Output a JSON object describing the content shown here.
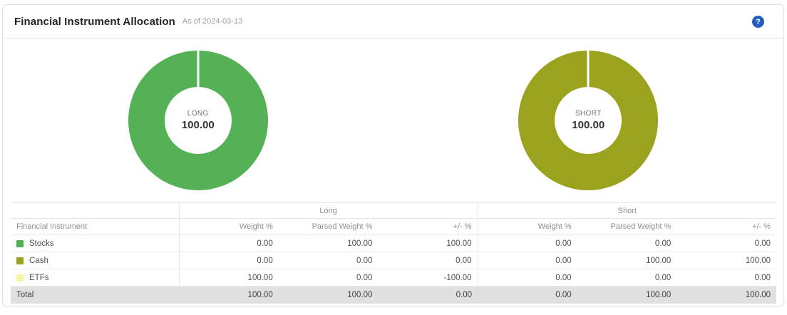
{
  "header": {
    "title": "Financial Instrument Allocation",
    "as_of": "As of 2024-03-13",
    "help_icon": "?"
  },
  "charts": [
    {
      "side": "long",
      "center_label": "LONG",
      "center_value": "100.00",
      "color": "#55b156"
    },
    {
      "side": "short",
      "center_label": "SHORT",
      "center_value": "100.00",
      "color": "#9aa21e"
    }
  ],
  "chart_data": [
    {
      "type": "pie",
      "donut": true,
      "center_label": "LONG",
      "center_value": 100.0,
      "slices": [
        {
          "label": "Stocks",
          "value": 100.0,
          "color": "#55b156"
        }
      ],
      "legend_position": "none"
    },
    {
      "type": "pie",
      "donut": true,
      "center_label": "SHORT",
      "center_value": 100.0,
      "slices": [
        {
          "label": "Cash",
          "value": 100.0,
          "color": "#9aa21e"
        }
      ],
      "legend_position": "none"
    }
  ],
  "table": {
    "group_headers": {
      "long": "Long",
      "short": "Short"
    },
    "col_headers": {
      "instrument": "Financial Instrument",
      "weight": "Weight %",
      "parsed_weight": "Parsed Weight %",
      "plus_minus": "+/- %"
    },
    "rows": [
      {
        "label": "Stocks",
        "swatch_color": "#4caf50",
        "long": [
          "0.00",
          "100.00",
          "100.00"
        ],
        "short": [
          "0.00",
          "0.00",
          "0.00"
        ]
      },
      {
        "label": "Cash",
        "swatch_color": "#9aa21e",
        "long": [
          "0.00",
          "0.00",
          "0.00"
        ],
        "short": [
          "0.00",
          "100.00",
          "100.00"
        ]
      },
      {
        "label": "ETFs",
        "swatch_color": "#f7f7a0",
        "long": [
          "100.00",
          "0.00",
          "-100.00"
        ],
        "short": [
          "0.00",
          "0.00",
          "0.00"
        ]
      }
    ],
    "total": {
      "label": "Total",
      "long": [
        "100.00",
        "100.00",
        "0.00"
      ],
      "short": [
        "0.00",
        "100.00",
        "100.00"
      ]
    }
  }
}
